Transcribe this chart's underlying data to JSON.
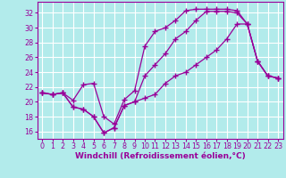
{
  "xlabel": "Windchill (Refroidissement éolien,°C)",
  "bg_color": "#b2ebeb",
  "grid_color": "#d0f0f0",
  "line_color": "#990099",
  "x_ticks": [
    0,
    1,
    2,
    3,
    4,
    5,
    6,
    7,
    8,
    9,
    10,
    11,
    12,
    13,
    14,
    15,
    16,
    17,
    18,
    19,
    20,
    21,
    22,
    23
  ],
  "y_ticks": [
    16,
    18,
    20,
    22,
    24,
    26,
    28,
    30,
    32
  ],
  "xlim": [
    -0.5,
    23.5
  ],
  "ylim": [
    15.0,
    33.5
  ],
  "series": {
    "upper": [
      21.2,
      21.0,
      21.2,
      20.2,
      22.3,
      22.5,
      18.0,
      17.0,
      20.3,
      21.5,
      27.5,
      29.5,
      30.0,
      31.0,
      32.3,
      32.5,
      32.5,
      32.5,
      32.5,
      32.3,
      30.5,
      25.5,
      23.5,
      23.2
    ],
    "middle": [
      21.2,
      21.0,
      21.2,
      19.3,
      19.0,
      18.0,
      15.8,
      16.5,
      19.5,
      20.0,
      23.5,
      25.0,
      26.5,
      28.5,
      29.5,
      31.0,
      32.2,
      32.2,
      32.2,
      32.0,
      30.5,
      25.5,
      23.5,
      23.2
    ],
    "lower": [
      21.2,
      21.0,
      21.2,
      19.3,
      19.0,
      18.0,
      15.8,
      16.5,
      19.5,
      20.0,
      20.5,
      21.0,
      22.5,
      23.5,
      24.0,
      25.0,
      26.0,
      27.0,
      28.5,
      30.5,
      30.5,
      25.5,
      23.5,
      23.2
    ]
  },
  "xlabel_fontsize": 6.5,
  "tick_fontsize": 5.8,
  "ylabel_fontsize": 6.0
}
